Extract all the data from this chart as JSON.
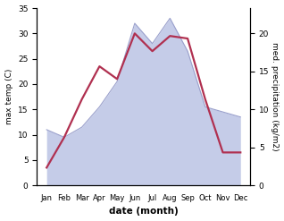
{
  "months": [
    "Jan",
    "Feb",
    "Mar",
    "Apr",
    "May",
    "Jun",
    "Jul",
    "Aug",
    "Sep",
    "Oct",
    "Nov",
    "Dec"
  ],
  "temperature": [
    3.5,
    9.5,
    17.0,
    23.5,
    21.0,
    30.0,
    26.5,
    29.5,
    29.0,
    17.0,
    6.5,
    6.5
  ],
  "precipitation": [
    11.0,
    9.5,
    11.5,
    15.5,
    20.5,
    32.0,
    28.0,
    33.0,
    26.5,
    15.5,
    14.5,
    13.5
  ],
  "temp_color": "#b03050",
  "precip_fill_color": "#c5cce8",
  "precip_edge_color": "#9aa0cc",
  "temp_ylim": [
    0,
    35
  ],
  "precip_ylim": [
    0,
    35
  ],
  "right_ylim": [
    0,
    23.33
  ],
  "temp_yticks": [
    0,
    5,
    10,
    15,
    20,
    25,
    30,
    35
  ],
  "right_yticks": [
    0,
    5,
    10,
    15,
    20
  ],
  "xlabel": "date (month)",
  "ylabel_left": "max temp (C)",
  "ylabel_right": "med. precipitation (kg/m2)",
  "bg_color": "#ffffff",
  "line_width": 1.6
}
